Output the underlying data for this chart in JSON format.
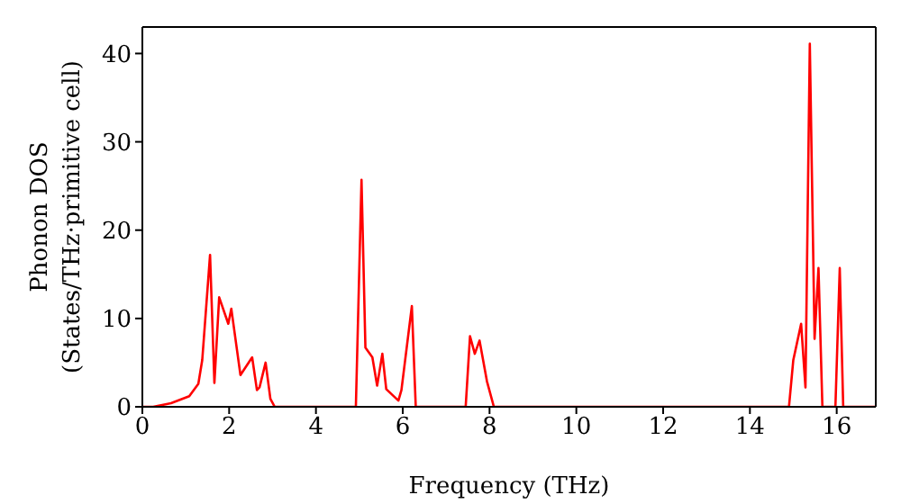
{
  "chart_data": {
    "type": "line",
    "xlabel": "Frequency (THz)",
    "ylabel": "Phonon DOS\n(States/THz·primitive cell)",
    "xlim": [
      0,
      16.9
    ],
    "xticks": [
      0,
      2,
      4,
      6,
      8,
      10,
      12,
      14,
      16
    ],
    "ylim": [
      0,
      43
    ],
    "yticks": [
      0,
      10,
      20,
      30,
      40
    ],
    "marker": "none",
    "line_style": "solid",
    "series": [
      {
        "color": "#ff0000",
        "x": [
          0,
          0.25,
          0.66,
          1.08,
          1.29,
          1.38,
          1.56,
          1.66,
          1.77,
          1.98,
          2.05,
          2.26,
          2.53,
          2.64,
          2.7,
          2.84,
          2.95,
          3.05,
          4.92,
          5.05,
          5.14,
          5.3,
          5.41,
          5.53,
          5.62,
          5.9,
          5.97,
          6.21,
          6.3,
          7.45,
          7.55,
          7.66,
          7.77,
          7.94,
          8.1,
          14.9,
          15.0,
          15.18,
          15.28,
          15.38,
          15.49,
          15.58,
          15.67,
          15.97,
          16.07,
          16.15,
          16.9
        ],
        "values": [
          0,
          0,
          0.4,
          1.2,
          2.6,
          5.3,
          17.2,
          2.7,
          12.4,
          9.4,
          11.1,
          3.6,
          5.6,
          1.9,
          2.2,
          5.0,
          0.9,
          0,
          0,
          25.7,
          6.7,
          5.6,
          2.4,
          6.0,
          2.0,
          0.7,
          1.9,
          11.4,
          0,
          0,
          8.0,
          6.0,
          7.5,
          2.9,
          0,
          0,
          5.3,
          9.4,
          2.2,
          41.1,
          7.7,
          15.7,
          0,
          0,
          15.7,
          0,
          0
        ]
      }
    ]
  }
}
